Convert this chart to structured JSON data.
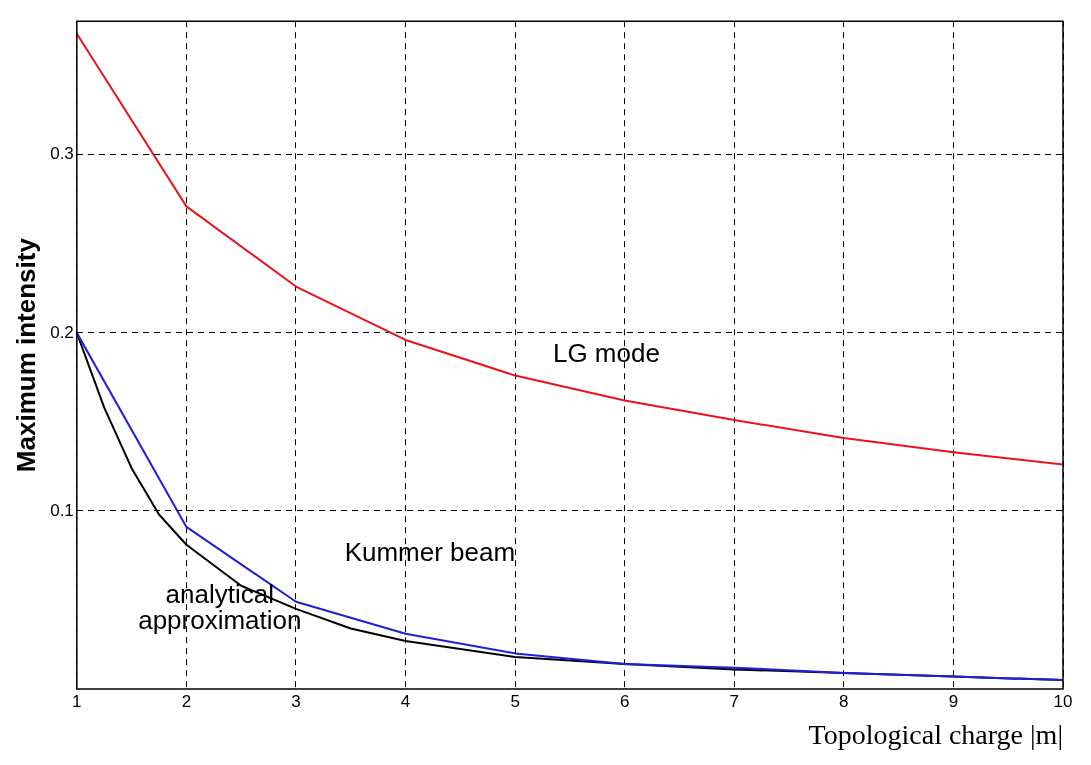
{
  "chart_data": {
    "type": "line",
    "xlabel": "Topological charge |m|",
    "ylabel": "Maximum intensity",
    "xlim": [
      1,
      10
    ],
    "xticks": [
      1,
      2,
      3,
      4,
      5,
      6,
      7,
      8,
      9,
      10
    ],
    "ylim": [
      0,
      0.375
    ],
    "yticks": [
      0.1,
      0.2,
      0.3
    ],
    "grid": true,
    "line_style": "solid",
    "marker": "none",
    "series": [
      {
        "color": "#e8141b",
        "x": [
          1,
          2,
          3,
          4,
          5,
          6,
          7,
          8,
          9,
          10
        ],
        "values": [
          0.368,
          0.271,
          0.226,
          0.196,
          0.176,
          0.162,
          0.151,
          0.141,
          0.133,
          0.126
        ]
      },
      {
        "color": "#1f1fd8",
        "x": [
          1,
          2,
          3,
          4,
          5,
          6,
          7,
          8,
          9,
          10
        ],
        "values": [
          0.2,
          0.091,
          0.049,
          0.031,
          0.02,
          0.014,
          0.012,
          0.009,
          0.007,
          0.005
        ]
      },
      {
        "color": "#000000",
        "x": [
          1,
          1.25,
          1.5,
          1.75,
          2,
          2.5,
          3,
          3.5,
          4,
          5,
          6,
          7,
          8,
          9,
          10
        ],
        "values": [
          0.2,
          0.158,
          0.124,
          0.098,
          0.081,
          0.058,
          0.045,
          0.034,
          0.027,
          0.018,
          0.014,
          0.011,
          0.009,
          0.007,
          0.005
        ]
      }
    ],
    "annotations": [
      "LG mode",
      "Kummer beam",
      "analytical\napproximation"
    ]
  }
}
